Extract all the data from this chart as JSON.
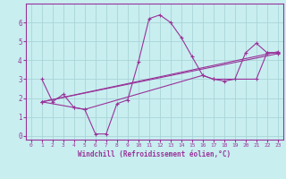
{
  "xlabel": "Windchill (Refroidissement éolien,°C)",
  "background_color": "#c8eef0",
  "grid_color": "#aad4d8",
  "line_color": "#993399",
  "xlim": [
    -0.5,
    23.5
  ],
  "ylim": [
    -0.2,
    7.0
  ],
  "xticks": [
    0,
    1,
    2,
    3,
    4,
    5,
    6,
    7,
    8,
    9,
    10,
    11,
    12,
    13,
    14,
    15,
    16,
    17,
    18,
    19,
    20,
    21,
    22,
    23
  ],
  "yticks": [
    0,
    1,
    2,
    3,
    4,
    5,
    6
  ],
  "lines": [
    {
      "x": [
        1,
        2,
        3,
        4,
        5,
        6,
        7,
        8,
        9,
        10,
        11,
        12,
        13,
        14,
        15,
        16,
        17,
        18,
        19,
        20,
        21,
        22,
        23
      ],
      "y": [
        3.0,
        1.8,
        2.2,
        1.5,
        1.4,
        0.1,
        0.1,
        1.7,
        1.9,
        3.9,
        6.2,
        6.4,
        6.0,
        5.2,
        4.2,
        3.2,
        3.0,
        2.9,
        3.0,
        4.4,
        4.9,
        4.4,
        4.4
      ]
    },
    {
      "x": [
        1,
        23
      ],
      "y": [
        1.8,
        4.45
      ]
    },
    {
      "x": [
        1,
        23
      ],
      "y": [
        1.8,
        4.35
      ]
    },
    {
      "x": [
        1,
        4,
        5,
        16,
        17,
        21,
        22,
        23
      ],
      "y": [
        1.8,
        1.5,
        1.4,
        3.2,
        3.0,
        3.0,
        4.4,
        4.4
      ]
    }
  ]
}
